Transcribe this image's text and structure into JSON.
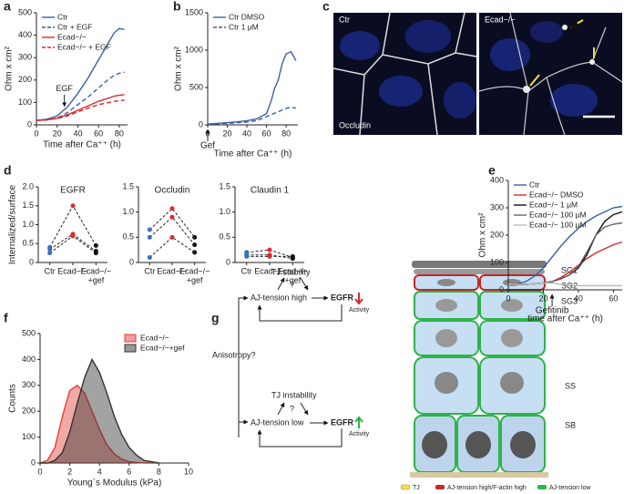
{
  "panel_labels": [
    "a",
    "b",
    "c",
    "d",
    "e",
    "f",
    "g"
  ],
  "chart_data": [
    {
      "type": "line",
      "x": [
        0,
        10,
        20,
        30,
        40,
        50,
        60,
        70,
        75,
        80,
        85
      ],
      "series": [
        {
          "name": "Ctr",
          "color": "#3d5fa8",
          "style": "solid",
          "values": [
            20,
            25,
            40,
            80,
            140,
            210,
            290,
            370,
            410,
            430,
            425
          ]
        },
        {
          "name": "Ctr + EGF",
          "color": "#3d5fa8",
          "style": "dashed",
          "values": [
            20,
            22,
            30,
            55,
            90,
            125,
            165,
            205,
            220,
            230,
            235
          ]
        },
        {
          "name": "Ecad−/−",
          "color": "#d62a2a",
          "style": "solid",
          "values": [
            20,
            22,
            30,
            45,
            65,
            85,
            105,
            120,
            128,
            132,
            135
          ]
        },
        {
          "name": "Ecad−/− + EGF",
          "color": "#d62a2a",
          "style": "dashed",
          "values": [
            20,
            22,
            28,
            40,
            58,
            75,
            90,
            100,
            105,
            108,
            110
          ]
        }
      ],
      "xlim": [
        0,
        88
      ],
      "xticks": [
        0,
        20,
        40,
        60,
        80
      ],
      "ylim": [
        0,
        500
      ],
      "yticks": [
        0,
        100,
        200,
        300,
        400,
        500
      ],
      "xlabel": "Time after Ca⁺⁺ (h)",
      "ylabel": "Ohm x cm²",
      "legend": "upper left",
      "annotations": [
        {
          "text": "EGF",
          "x": 27,
          "y": 70,
          "placement": "above"
        }
      ]
    },
    {
      "type": "line",
      "x": [
        0,
        10,
        20,
        30,
        40,
        50,
        60,
        65,
        68,
        72,
        76,
        80,
        85,
        90
      ],
      "series": [
        {
          "name": "Ctr DMSO",
          "color": "#3d5fa8",
          "style": "solid",
          "values": [
            10,
            20,
            30,
            40,
            55,
            80,
            150,
            330,
            480,
            600,
            820,
            950,
            980,
            860
          ]
        },
        {
          "name": "Ctr 1 µM",
          "color": "#3d5fa8",
          "style": "dashed",
          "values": [
            10,
            15,
            20,
            28,
            38,
            55,
            110,
            140,
            155,
            175,
            200,
            220,
            235,
            225
          ]
        }
      ],
      "xlim": [
        0,
        92
      ],
      "xticks": [
        0,
        20,
        40,
        60,
        80
      ],
      "ylim": [
        0,
        1500
      ],
      "yticks": [
        0,
        500,
        1000,
        1500
      ],
      "xlabel": "Time after Ca⁺⁺ (h)",
      "ylabel": "Ohm x cm²",
      "legend": "upper left",
      "annotations": [
        {
          "text": "Gef",
          "x": 0,
          "placement": "below"
        }
      ]
    },
    {
      "type": "dot_line",
      "title": "EGFR",
      "ylabel": "Internalized/surface",
      "categories": [
        "Ctr",
        "Ecad−/−",
        "Ecad−/−"
      ],
      "category_sublabels": [
        null,
        null,
        "+gef"
      ],
      "point_colors": [
        "#3d6fb8",
        "#e0282a",
        "#111111"
      ],
      "series": [
        {
          "values": [
            0.4,
            1.5,
            0.45
          ]
        },
        {
          "values": [
            0.35,
            0.75,
            0.3
          ]
        },
        {
          "values": [
            0.25,
            0.7,
            0.25
          ]
        }
      ],
      "ylim": [
        0,
        2
      ],
      "yticks": [
        0,
        0.5,
        {
          "value": 1,
          "label": "1.0"
        },
        1.5,
        {
          "value": 2,
          "label": "2.0"
        }
      ]
    },
    {
      "type": "dot_line",
      "title": "Occludin",
      "categories": [
        "Ctr",
        "Ecad−/−",
        "Ecad−/−"
      ],
      "category_sublabels": [
        null,
        null,
        "+gef"
      ],
      "point_colors": [
        "#3d6fb8",
        "#e0282a",
        "#111111"
      ],
      "series": [
        {
          "values": [
            0.65,
            1.07,
            0.5
          ]
        },
        {
          "values": [
            0.5,
            0.9,
            0.35
          ]
        },
        {
          "values": [
            0.1,
            0.5,
            0.2
          ]
        }
      ],
      "ylim": [
        0,
        1.5
      ],
      "yticks": [
        0,
        0.5,
        {
          "value": 1,
          "label": "1.0"
        },
        1.5
      ]
    },
    {
      "type": "dot_line",
      "title": "Claudin 1",
      "categories": [
        "Ctr",
        "Ecad−/−",
        "Ecad−/−"
      ],
      "category_sublabels": [
        null,
        null,
        "+gef"
      ],
      "point_colors": [
        "#3d6fb8",
        "#e0282a",
        "#111111"
      ],
      "series": [
        {
          "values": [
            0.2,
            0.25,
            0.1
          ]
        },
        {
          "values": [
            0.12,
            0.12,
            0.12
          ]
        },
        {
          "values": [
            0.15,
            0.15,
            0.08
          ]
        }
      ],
      "ylim": [
        0,
        1.5
      ],
      "yticks": [
        0,
        0.5,
        {
          "value": 1,
          "label": "1.0"
        },
        1.5
      ]
    },
    {
      "type": "line",
      "x": [
        0,
        5,
        10,
        15,
        20,
        25,
        30,
        35,
        40,
        45,
        50,
        55,
        60,
        65
      ],
      "series": [
        {
          "name": "Ctr",
          "color": "#3d5fa8",
          "style": "solid",
          "values": [
            20,
            22,
            30,
            50,
            80,
            120,
            160,
            195,
            225,
            250,
            270,
            285,
            300,
            305
          ]
        },
        {
          "name": "Ecad−/− DMSO",
          "color": "#d62a2a",
          "style": "solid",
          "values": [
            20,
            20,
            20,
            22,
            25,
            30,
            45,
            65,
            90,
            115,
            135,
            150,
            165,
            175
          ]
        },
        {
          "name": "Ecad−/− 1 µM",
          "color": "#111111",
          "style": "solid",
          "values": [
            20,
            20,
            20,
            22,
            25,
            30,
            40,
            55,
            80,
            130,
            200,
            250,
            275,
            285
          ]
        },
        {
          "name": "Ecad−/− 100 µM",
          "color": "#666666",
          "style": "solid",
          "values": [
            20,
            20,
            20,
            22,
            25,
            30,
            40,
            55,
            85,
            140,
            200,
            230,
            240,
            245
          ]
        },
        {
          "name": "Ecad−/− 100 µM",
          "color": "#bbbbbb",
          "style": "solid",
          "values": [
            20,
            20,
            20,
            22,
            25,
            25,
            20,
            18,
            15,
            15,
            15,
            15,
            15,
            15
          ]
        }
      ],
      "xlim": [
        0,
        65
      ],
      "xticks": [
        0,
        20,
        40,
        60
      ],
      "ylim": [
        0,
        400
      ],
      "yticks": [
        0,
        100,
        200,
        300,
        400
      ],
      "xlabel": "time after Ca⁺⁺ (h)",
      "ylabel": "Ohm x cm²",
      "legend": "upper left",
      "annotations": [
        {
          "text": "Gefitinib",
          "x": 25,
          "placement": "below"
        }
      ]
    },
    {
      "type": "area",
      "x": [
        0,
        0.5,
        1,
        1.5,
        2,
        2.5,
        3,
        3.5,
        4,
        4.5,
        5,
        5.5,
        6,
        6.5,
        7,
        7.5,
        8
      ],
      "series": [
        {
          "name": "Ecad−/−",
          "color": "#e0403a",
          "values": [
            0,
            10,
            60,
            180,
            280,
            300,
            270,
            200,
            130,
            70,
            35,
            15,
            5,
            2,
            0,
            0,
            0
          ]
        },
        {
          "name": "Ecad−/−+gef",
          "color": "#333333",
          "values": [
            0,
            0,
            10,
            40,
            120,
            230,
            330,
            400,
            350,
            270,
            180,
            110,
            60,
            30,
            10,
            5,
            0
          ]
        }
      ],
      "xlim": [
        0,
        10
      ],
      "xticks": [
        0,
        2,
        4,
        6,
        8,
        10
      ],
      "ylim": [
        0,
        500
      ],
      "yticks": [
        0,
        100,
        200,
        300,
        400,
        500
      ],
      "xlabel": "Young´s Modulus (kPa)",
      "ylabel": "Counts",
      "legend": "upper right"
    }
  ],
  "micrographs": {
    "left": {
      "labels": [
        "Ctr",
        "Occludin"
      ]
    },
    "right": {
      "labels": [
        "Ecad−/−"
      ]
    }
  },
  "diagram": {
    "input": "Anisotropy?",
    "high": {
      "tj": "TJ stability",
      "link": "?",
      "aj": "AJ-tension high",
      "egfr": "EGFR",
      "activity": "Activity"
    },
    "low": {
      "tj": "TJ instability",
      "link": "?",
      "aj": "AJ-tension low",
      "egfr": "EGFR",
      "activity": "Activity"
    },
    "layers": [
      "SG1",
      "SG2",
      "SG3",
      "SS",
      "SB"
    ],
    "legend": [
      "TJ",
      "AJ-tension high/F-actin high",
      "AJ-tension low"
    ]
  }
}
